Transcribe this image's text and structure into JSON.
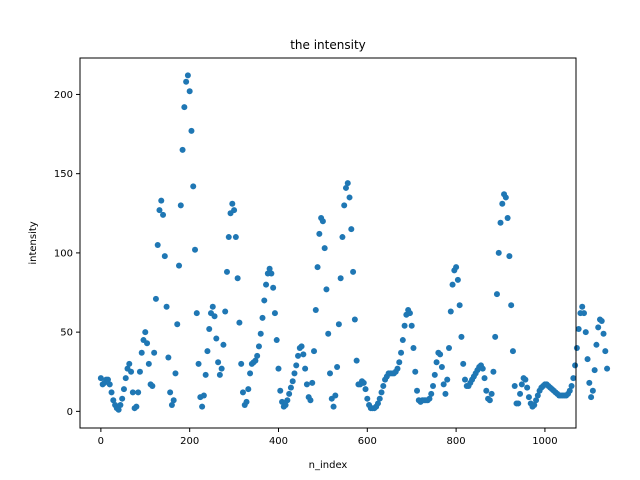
{
  "chart_data": {
    "type": "scatter",
    "title": "the intensity",
    "xlabel": "n_index",
    "ylabel": "intensity",
    "xlim": [
      -47,
      1070
    ],
    "ylim": [
      -10.5,
      223
    ],
    "xticks": [
      0,
      200,
      400,
      600,
      800,
      1000
    ],
    "yticks": [
      0,
      50,
      100,
      150,
      200
    ],
    "grid": false,
    "legend": "none",
    "marker_color": "#1f77b4",
    "x_start": 0,
    "x_step": 4,
    "series": [
      {
        "values": [
          21,
          17,
          18,
          20,
          20,
          17,
          12,
          7,
          4,
          2,
          1,
          4,
          8,
          14,
          21,
          27,
          30,
          25,
          12,
          2,
          3,
          12,
          25,
          37,
          45,
          50,
          43,
          30,
          17,
          16,
          37,
          71,
          105,
          127,
          133,
          124,
          98,
          66,
          34,
          12,
          4,
          7,
          24,
          55,
          92,
          130,
          165,
          192,
          208,
          212,
          202,
          177,
          142,
          102,
          62,
          30,
          9,
          3,
          10,
          23,
          38,
          52,
          62,
          66,
          60,
          46,
          31,
          23,
          27,
          42,
          63,
          88,
          110,
          125,
          131,
          127,
          110,
          84,
          56,
          30,
          12,
          4,
          6,
          14,
          24,
          30,
          31,
          32,
          35,
          41,
          49,
          59,
          70,
          80,
          87,
          90,
          87,
          78,
          62,
          45,
          27,
          13,
          6,
          3,
          4,
          7,
          11,
          15,
          19,
          24,
          29,
          35,
          40,
          41,
          36,
          27,
          17,
          9,
          7,
          18,
          38,
          64,
          91,
          112,
          122,
          120,
          103,
          77,
          49,
          24,
          8,
          3,
          10,
          28,
          55,
          84,
          110,
          130,
          141,
          144,
          135,
          115,
          88,
          58,
          32,
          17,
          17,
          19,
          18,
          14,
          8,
          4,
          2,
          2,
          2,
          3,
          5,
          8,
          12,
          16,
          20,
          22,
          24,
          24,
          24,
          24,
          25,
          27,
          31,
          37,
          45,
          54,
          61,
          64,
          62,
          54,
          40,
          25,
          13,
          7,
          6,
          7,
          7,
          7,
          7,
          8,
          11,
          16,
          23,
          31,
          37,
          36,
          28,
          17,
          11,
          20,
          40,
          63,
          80,
          89,
          91,
          83,
          67,
          47,
          30,
          20,
          16,
          16,
          18,
          20,
          22,
          24,
          26,
          28,
          29,
          27,
          21,
          13,
          8,
          7,
          11,
          25,
          47,
          74,
          100,
          119,
          131,
          137,
          135,
          122,
          98,
          67,
          38,
          16,
          5,
          5,
          11,
          17,
          21,
          20,
          15,
          9,
          5,
          3,
          4,
          7,
          10,
          13,
          15,
          16,
          17,
          17,
          16,
          15,
          14,
          13,
          12,
          11,
          10,
          10,
          10,
          10,
          10,
          11,
          13,
          16,
          21,
          29,
          40,
          52,
          62,
          66,
          62,
          50,
          33,
          18,
          9,
          13,
          26,
          42,
          53,
          58,
          57,
          49,
          38,
          27
        ]
      }
    ]
  }
}
